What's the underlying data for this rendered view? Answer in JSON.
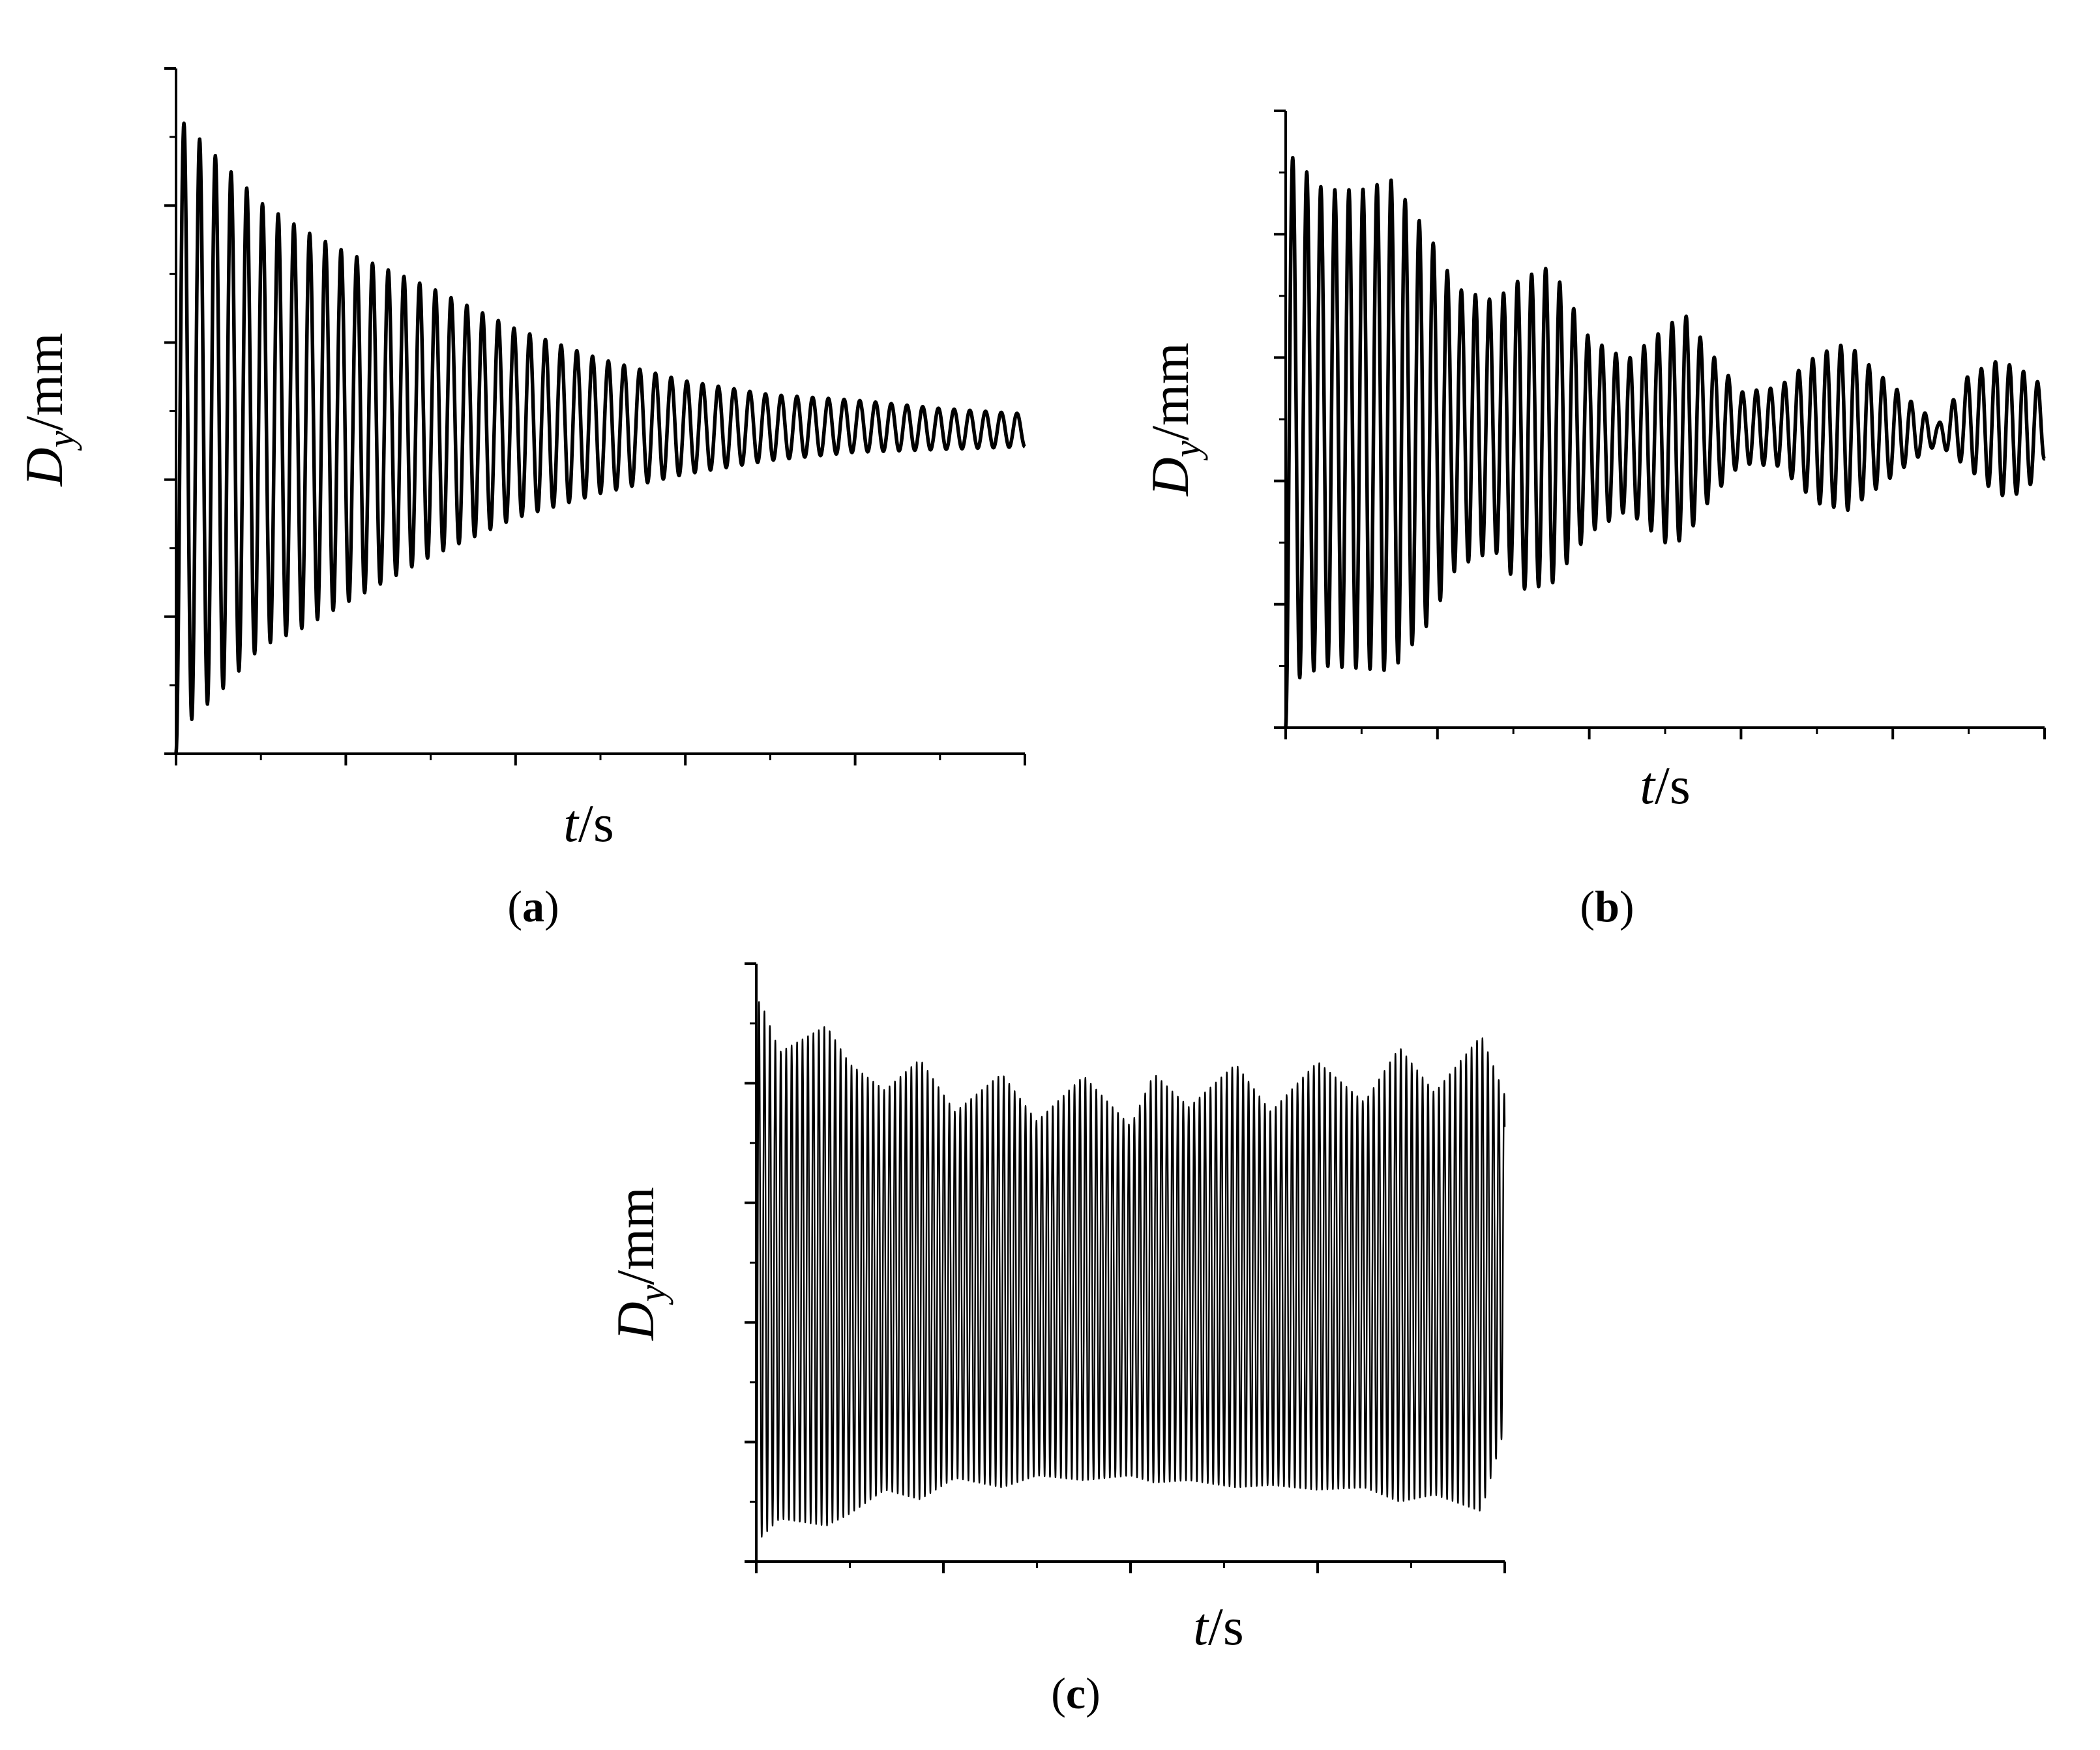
{
  "chart_data": [
    {
      "panel": "a",
      "panel_label": {
        "open": "(",
        "letter": "a",
        "close": ")"
      },
      "type": "line",
      "xlabel": {
        "var": "t",
        "unit": "/s"
      },
      "ylabel": {
        "var": "D",
        "sub": "y",
        "unit": "/mm"
      },
      "xlim": [
        0,
        2.0
      ],
      "ylim": [
        0,
        2.5
      ],
      "xticks": [
        "0.0",
        "0.4",
        "0.8",
        "1.2",
        "1.6",
        "2.0"
      ],
      "yticks": [
        "0.0",
        "0.5",
        "1.0",
        "1.5",
        "2.0",
        "2.5"
      ],
      "grid": false,
      "series": [
        {
          "description_values": "damped oscillation about ~1.17 mm",
          "frequency_hz": 27,
          "duration_s": 2.0,
          "envelope": {
            "t": [
              0.0,
              0.02,
              0.1,
              0.2,
              0.3,
              0.4,
              0.6,
              0.8,
              1.0,
              1.2,
              1.4,
              1.6,
              1.8,
              2.0
            ],
            "max": [
              2.3,
              2.3,
              2.17,
              2.01,
              1.91,
              1.83,
              1.7,
              1.55,
              1.44,
              1.36,
              1.31,
              1.29,
              1.26,
              1.24
            ],
            "min": [
              0.0,
              0.1,
              0.22,
              0.39,
              0.46,
              0.55,
              0.72,
              0.86,
              0.95,
              1.02,
              1.07,
              1.1,
              1.11,
              1.12
            ]
          }
        }
      ]
    },
    {
      "panel": "b",
      "panel_label": {
        "open": "(",
        "letter": "b",
        "close": ")"
      },
      "type": "line",
      "xlabel": {
        "var": "t",
        "unit": "/s"
      },
      "ylabel": {
        "var": "D",
        "sub": "y",
        "unit": "/mm"
      },
      "xlim": [
        0,
        2.0
      ],
      "ylim": [
        0,
        2.5
      ],
      "xticks": [
        "0.0",
        "0.4",
        "0.8",
        "1.2",
        "1.6",
        "2.0"
      ],
      "yticks": [
        "0.0",
        "0.5",
        "1.0",
        "1.5",
        "2.0",
        "2.5"
      ],
      "grid": false,
      "series": [
        {
          "description_values": "beating oscillation",
          "frequency_hz": 27,
          "duration_s": 2.0,
          "envelope": {
            "t": [
              0.0,
              0.02,
              0.1,
              0.2,
              0.28,
              0.38,
              0.45,
              0.55,
              0.62,
              0.7,
              0.8,
              0.9,
              1.0,
              1.05,
              1.12,
              1.2,
              1.3,
              1.4,
              1.48,
              1.55,
              1.65,
              1.72,
              1.8,
              1.88,
              1.95,
              2.0
            ],
            "max": [
              2.31,
              2.31,
              2.18,
              2.18,
              2.22,
              1.99,
              1.78,
              1.73,
              1.82,
              1.87,
              1.58,
              1.49,
              1.62,
              1.68,
              1.52,
              1.36,
              1.38,
              1.51,
              1.56,
              1.45,
              1.32,
              1.23,
              1.43,
              1.49,
              1.44,
              1.38
            ],
            "min": [
              0.0,
              0.19,
              0.25,
              0.24,
              0.23,
              0.43,
              0.65,
              0.72,
              0.56,
              0.58,
              0.79,
              0.88,
              0.75,
              0.76,
              0.93,
              1.07,
              1.06,
              0.91,
              0.88,
              0.96,
              1.08,
              1.15,
              1.05,
              0.94,
              0.95,
              1.09
            ]
          }
        }
      ]
    },
    {
      "panel": "c",
      "panel_label": {
        "open": "(",
        "letter": "c",
        "close": ")"
      },
      "type": "line",
      "xlabel": {
        "var": "t",
        "unit": "/s"
      },
      "ylabel": {
        "var": "D",
        "sub": "y",
        "unit": "/mm"
      },
      "xlim": [
        0,
        3.2
      ],
      "ylim": [
        0,
        2.5
      ],
      "xticks": [
        "0.0",
        "0.8",
        "1.6",
        "2.4",
        "3.2"
      ],
      "yticks": [
        "0.0",
        "0.5",
        "1.0",
        "1.5",
        "2.0",
        "2.5"
      ],
      "grid": false,
      "series": [
        {
          "description_values": "sustained oscillation with amplitude modulation",
          "frequency_hz": 43,
          "duration_s": 3.2,
          "envelope": {
            "t": [
              0.0,
              0.02,
              0.1,
              0.3,
              0.4,
              0.55,
              0.7,
              0.85,
              1.05,
              1.2,
              1.4,
              1.6,
              1.7,
              1.85,
              2.05,
              2.2,
              2.4,
              2.6,
              2.75,
              2.9,
              3.1,
              3.2
            ],
            "max": [
              2.34,
              2.34,
              2.13,
              2.24,
              2.08,
              1.97,
              2.1,
              1.88,
              2.04,
              1.84,
              2.03,
              1.82,
              2.04,
              1.9,
              2.08,
              1.88,
              2.09,
              1.92,
              2.15,
              1.96,
              2.2,
              1.95
            ],
            "min": [
              0.0,
              0.1,
              0.18,
              0.15,
              0.2,
              0.3,
              0.26,
              0.35,
              0.31,
              0.36,
              0.34,
              0.36,
              0.33,
              0.34,
              0.31,
              0.32,
              0.3,
              0.31,
              0.25,
              0.28,
              0.21,
              0.56
            ]
          }
        }
      ]
    }
  ]
}
